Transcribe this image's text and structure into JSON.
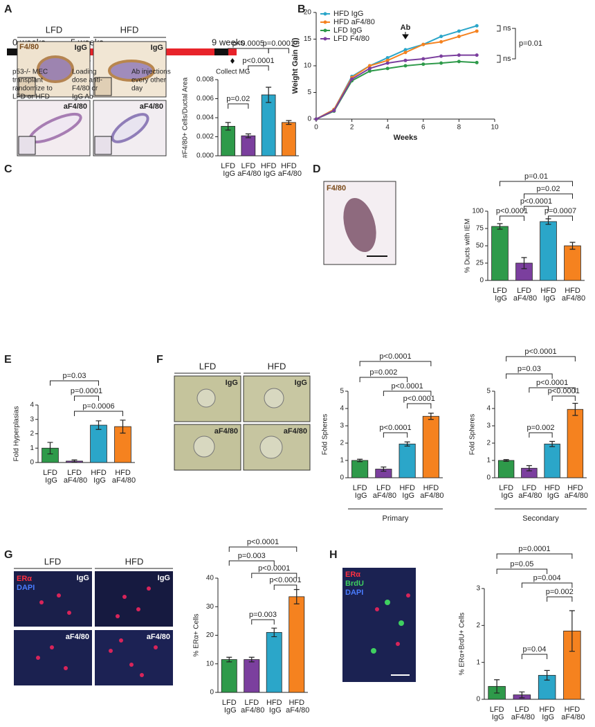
{
  "panel_labels": [
    "A",
    "B",
    "C",
    "D",
    "E",
    "F",
    "G",
    "H"
  ],
  "timeline": {
    "times": [
      "0 weeks",
      "5 weeks",
      "9 weeks"
    ],
    "events": [
      [
        "p53-/- MEC",
        "transplant",
        "randomize to",
        "LFD or HFD"
      ],
      [
        "Loading",
        "dose anti-",
        "F4/80 or",
        "IgG Ab"
      ],
      [
        "Ab injections",
        "every other",
        "day"
      ],
      [
        "Collect MG"
      ]
    ]
  },
  "images": {
    "C": {
      "columns": [
        "LFD",
        "HFD"
      ],
      "stain": "F4/80",
      "tags": [
        "IgG",
        "IgG",
        "aF4/80",
        "aF4/80"
      ]
    },
    "D": {
      "stain": "F4/80"
    },
    "F": {
      "columns": [
        "LFD",
        "HFD"
      ],
      "tags": [
        "IgG",
        "IgG",
        "aF4/80",
        "aF4/80"
      ]
    },
    "G": {
      "columns": [
        "LFD",
        "HFD"
      ],
      "stains": [
        "ERα",
        "DAPI"
      ],
      "tags": [
        "IgG",
        "IgG",
        "aF4/80",
        "aF4/80"
      ]
    },
    "H": {
      "stains": [
        "ERα",
        "BrdU",
        "DAPI"
      ]
    }
  },
  "chart_data": [
    {
      "type": "line",
      "xlabel": "Weeks",
      "ylabel": "Weight Gain (g)",
      "x": [
        0,
        1,
        2,
        3,
        4,
        5,
        6,
        7,
        8,
        9
      ],
      "xlim": [
        0,
        10
      ],
      "xticks": [
        0,
        2,
        4,
        6,
        8,
        10
      ],
      "ylim": [
        0,
        20
      ],
      "yticks": [
        0,
        5,
        10,
        15,
        20
      ],
      "series": [
        {
          "name": "HFD IgG",
          "color": "#2ba6c9",
          "values": [
            0,
            1.8,
            8,
            10,
            11.5,
            13,
            14,
            15.5,
            16.5,
            17.5
          ]
        },
        {
          "name": "HFD aF4/80",
          "color": "#f5821f",
          "values": [
            0,
            1.8,
            7.8,
            10,
            11,
            12.5,
            14,
            14.5,
            15.5,
            16.5
          ]
        },
        {
          "name": "LFD IgG",
          "color": "#2e9a4a",
          "values": [
            0,
            1.5,
            7.2,
            9,
            9.5,
            10,
            10.3,
            10.5,
            10.8,
            10.6
          ]
        },
        {
          "name": "LFD F4/80",
          "color": "#7b3f9e",
          "values": [
            0,
            1.6,
            7.5,
            9.5,
            10.5,
            11,
            11.3,
            11.8,
            12,
            12
          ]
        }
      ],
      "legend": "upper left",
      "annotations": [
        "Ab",
        "ns",
        "ns",
        "p=0.01"
      ]
    },
    {
      "type": "bar",
      "ylabel": "#F4/80+ Cells/Ductal Area",
      "categories": [
        "LFD IgG",
        "LFD aF4/80",
        "HFD IgG",
        "HFD aF4/80"
      ],
      "colors": [
        "#2e9a4a",
        "#7b3f9e",
        "#2ba6c9",
        "#f5821f"
      ],
      "values": [
        0.0031,
        0.0021,
        0.0064,
        0.0035
      ],
      "errors": [
        0.0004,
        0.0002,
        0.0008,
        0.0002
      ],
      "ylim": [
        0,
        0.008
      ],
      "yticks": [
        {
          "value": 0,
          "label": "0.000"
        },
        0.002,
        0.004,
        0.006,
        0.008
      ],
      "comparisons": [
        {
          "label": "p=0.0005",
          "from": "LFD IgG",
          "to": "HFD IgG"
        },
        {
          "label": "p=0.0001",
          "from": "HFD IgG",
          "to": "HFD aF4/80"
        },
        {
          "label": "p<0.0001",
          "from": "LFD aF4/80",
          "to": "HFD IgG"
        },
        {
          "label": "p=0.02",
          "from": "LFD IgG",
          "to": "LFD aF4/80"
        }
      ]
    },
    {
      "type": "bar",
      "ylabel": "% Ducts with IEM",
      "categories": [
        "LFD IgG",
        "LFD aF4/80",
        "HFD IgG",
        "HFD aF4/80"
      ],
      "colors": [
        "#2e9a4a",
        "#7b3f9e",
        "#2ba6c9",
        "#f5821f"
      ],
      "values": [
        78,
        25,
        85,
        50
      ],
      "errors": [
        4,
        8,
        4,
        5
      ],
      "ylim": [
        0,
        100
      ],
      "yticks": [
        0,
        25,
        50,
        75,
        100
      ],
      "comparisons": [
        {
          "label": "p=0.01",
          "from": "LFD IgG",
          "to": "HFD aF4/80"
        },
        {
          "label": "p=0.02",
          "from": "LFD aF4/80",
          "to": "HFD aF4/80"
        },
        {
          "label": "p<0.0001",
          "from": "LFD aF4/80",
          "to": "HFD IgG"
        },
        {
          "label": "p<0.0001",
          "from": "LFD IgG",
          "to": "LFD aF4/80"
        },
        {
          "label": "p=0.0007",
          "from": "HFD IgG",
          "to": "HFD aF4/80"
        }
      ]
    },
    {
      "type": "bar",
      "ylabel": "Fold Hyperplasias",
      "categories": [
        "LFD IgG",
        "LFD aF4/80",
        "HFD IgG",
        "HFD aF4/80"
      ],
      "colors": [
        "#2e9a4a",
        "#7b3f9e",
        "#2ba6c9",
        "#f5821f"
      ],
      "values": [
        1.0,
        0.1,
        2.6,
        2.5
      ],
      "errors": [
        0.4,
        0.08,
        0.3,
        0.45
      ],
      "ylim": [
        0,
        4
      ],
      "yticks": [
        0,
        1,
        2,
        3,
        4
      ],
      "comparisons": [
        {
          "label": "p=0.03",
          "from": "LFD IgG",
          "to": "HFD IgG"
        },
        {
          "label": "p=0.0001",
          "from": "LFD aF4/80",
          "to": "HFD IgG"
        },
        {
          "label": "p=0.0006",
          "from": "LFD aF4/80",
          "to": "HFD aF4/80"
        }
      ]
    },
    {
      "type": "bar",
      "ylabel": "Fold Spheres",
      "group_label": "Primary",
      "categories": [
        "LFD IgG",
        "LFD aF4/80",
        "HFD IgG",
        "HFD aF4/80"
      ],
      "colors": [
        "#2e9a4a",
        "#7b3f9e",
        "#2ba6c9",
        "#f5821f"
      ],
      "values": [
        1.0,
        0.5,
        1.95,
        3.55
      ],
      "errors": [
        0.07,
        0.12,
        0.12,
        0.18
      ],
      "ylim": [
        0,
        5
      ],
      "yticks": [
        0,
        1,
        2,
        3,
        4,
        5
      ],
      "comparisons": [
        {
          "label": "p<0.0001",
          "from": "LFD IgG",
          "to": "HFD aF4/80"
        },
        {
          "label": "p=0.002",
          "from": "LFD IgG",
          "to": "HFD IgG"
        },
        {
          "label": "p<0.0001",
          "from": "LFD aF4/80",
          "to": "HFD aF4/80"
        },
        {
          "label": "p<0.0001",
          "from": "HFD IgG",
          "to": "HFD aF4/80"
        },
        {
          "label": "p<0.0001",
          "from": "LFD aF4/80",
          "to": "HFD IgG"
        }
      ]
    },
    {
      "type": "bar",
      "ylabel": "Fold Spheres",
      "group_label": "Secondary",
      "categories": [
        "LFD IgG",
        "LFD aF4/80",
        "HFD IgG",
        "HFD aF4/80"
      ],
      "colors": [
        "#2e9a4a",
        "#7b3f9e",
        "#2ba6c9",
        "#f5821f"
      ],
      "values": [
        1.0,
        0.55,
        1.95,
        3.95
      ],
      "errors": [
        0.05,
        0.15,
        0.15,
        0.35
      ],
      "ylim": [
        0,
        5
      ],
      "yticks": [
        0,
        1,
        2,
        3,
        4,
        5
      ],
      "comparisons": [
        {
          "label": "p<0.0001",
          "from": "LFD IgG",
          "to": "HFD aF4/80"
        },
        {
          "label": "p=0.03",
          "from": "LFD IgG",
          "to": "HFD IgG"
        },
        {
          "label": "p<0.0001",
          "from": "LFD aF4/80",
          "to": "HFD aF4/80"
        },
        {
          "label": "p<0.0001",
          "from": "HFD IgG",
          "to": "HFD aF4/80"
        },
        {
          "label": "p=0.002",
          "from": "LFD aF4/80",
          "to": "HFD IgG"
        }
      ]
    },
    {
      "type": "bar",
      "ylabel": "% ERα+ Cells",
      "categories": [
        "LFD IgG",
        "LFD aF4/80",
        "HFD IgG",
        "HFD aF4/80"
      ],
      "colors": [
        "#2e9a4a",
        "#7b3f9e",
        "#2ba6c9",
        "#f5821f"
      ],
      "values": [
        11.5,
        11.5,
        21,
        33.5
      ],
      "errors": [
        0.8,
        0.8,
        1.5,
        2.5
      ],
      "ylim": [
        0,
        40
      ],
      "yticks": [
        0,
        10,
        20,
        30,
        40
      ],
      "comparisons": [
        {
          "label": "p<0.0001",
          "from": "LFD IgG",
          "to": "HFD aF4/80"
        },
        {
          "label": "p=0.003",
          "from": "LFD IgG",
          "to": "HFD IgG"
        },
        {
          "label": "p<0.0001",
          "from": "LFD aF4/80",
          "to": "HFD aF4/80"
        },
        {
          "label": "p<0.0001",
          "from": "HFD IgG",
          "to": "HFD aF4/80"
        },
        {
          "label": "p=0.003",
          "from": "LFD aF4/80",
          "to": "HFD IgG"
        }
      ]
    },
    {
      "type": "bar",
      "ylabel": "% ERα+BrdU+ Cells",
      "categories": [
        "LFD IgG",
        "LFD aF4/80",
        "HFD IgG",
        "HFD aF4/80"
      ],
      "colors": [
        "#2e9a4a",
        "#7b3f9e",
        "#2ba6c9",
        "#f5821f"
      ],
      "values": [
        0.35,
        0.12,
        0.65,
        1.85
      ],
      "errors": [
        0.18,
        0.08,
        0.13,
        0.55
      ],
      "ylim": [
        0,
        3
      ],
      "yticks": [
        0,
        1,
        2,
        3
      ],
      "comparisons": [
        {
          "label": "p=0.0001",
          "from": "LFD IgG",
          "to": "HFD aF4/80"
        },
        {
          "label": "p=0.05",
          "from": "LFD IgG",
          "to": "HFD IgG"
        },
        {
          "label": "p=0.004",
          "from": "LFD aF4/80",
          "to": "HFD aF4/80"
        },
        {
          "label": "p=0.002",
          "from": "HFD IgG",
          "to": "HFD aF4/80"
        },
        {
          "label": "p=0.04",
          "from": "LFD aF4/80",
          "to": "HFD IgG"
        }
      ]
    }
  ]
}
